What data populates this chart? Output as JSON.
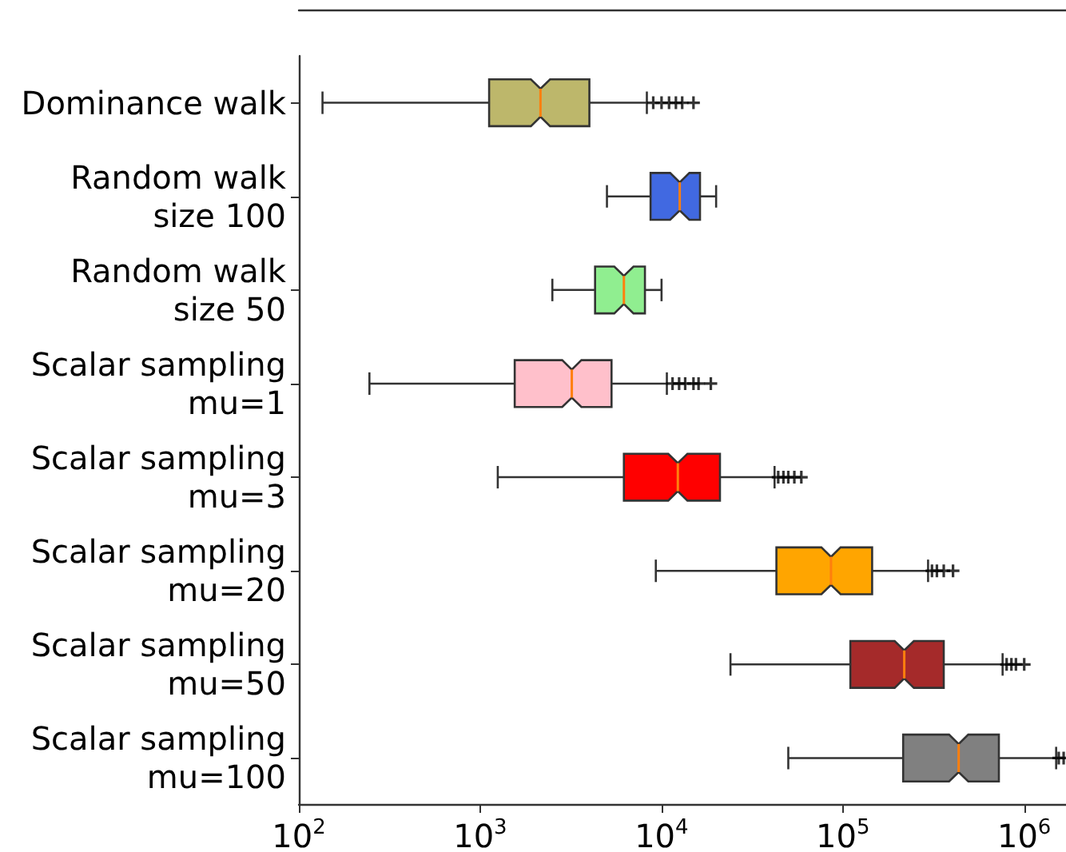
{
  "chart_data": {
    "type": "box",
    "orientation": "horizontal",
    "log": "x",
    "grid": false,
    "categories": [
      "Dominance walk",
      "Random walk\nsize 100",
      "Random walk\nsize 50",
      "Scalar sampling\nmu=1",
      "Scalar sampling\nmu=3",
      "Scalar sampling\nmu=20",
      "Scalar sampling\nmu=50",
      "Scalar sampling\nmu=100"
    ],
    "colors": [
      "#bdb76b",
      "#4169e1",
      "#90ee90",
      "#ffc0cb",
      "#ff0000",
      "#ffa500",
      "#a52a2a",
      "#808080"
    ],
    "boxes": [
      {
        "low": 135,
        "q1": 1120,
        "median": 2150,
        "q3": 4000,
        "high": 8300,
        "outliers": [
          9000,
          10000,
          11000,
          12000,
          13000,
          15000
        ]
      },
      {
        "low": 5000,
        "q1": 8700,
        "median": 12600,
        "q3": 16300,
        "high": 20000
      },
      {
        "low": 2500,
        "q1": 4300,
        "median": 6200,
        "q3": 8100,
        "high": 10000
      },
      {
        "low": 245,
        "q1": 1550,
        "median": 3200,
        "q3": 5300,
        "high": 10700,
        "outliers": [
          11500,
          12500,
          13500,
          15000,
          16000,
          18700
        ]
      },
      {
        "low": 1250,
        "q1": 6200,
        "median": 12300,
        "q3": 21000,
        "high": 42000,
        "outliers": [
          44000,
          47000,
          50000,
          54000,
          59000
        ]
      },
      {
        "low": 9300,
        "q1": 43000,
        "median": 86000,
        "q3": 145000,
        "high": 295000,
        "outliers": [
          310000,
          330000,
          360000,
          405000
        ]
      },
      {
        "low": 24000,
        "q1": 110000,
        "median": 218000,
        "q3": 360000,
        "high": 760000,
        "outliers": [
          800000,
          850000,
          900000,
          1000000
        ]
      },
      {
        "low": 50000,
        "q1": 215000,
        "median": 435000,
        "q3": 725000,
        "high": 1500000,
        "outliers": [
          1550000,
          1650000
        ]
      }
    ],
    "xlim": [
      100,
      1700000
    ],
    "xticks": [
      {
        "value": 100,
        "label": "10$^{2}$"
      },
      {
        "value": 1000,
        "label": "10$^{3}$"
      },
      {
        "value": 10000,
        "label": "10$^{4}$"
      },
      {
        "value": 100000,
        "label": "10$^{5}$"
      },
      {
        "value": 1000000,
        "label": "10$^{6}$"
      }
    ]
  }
}
